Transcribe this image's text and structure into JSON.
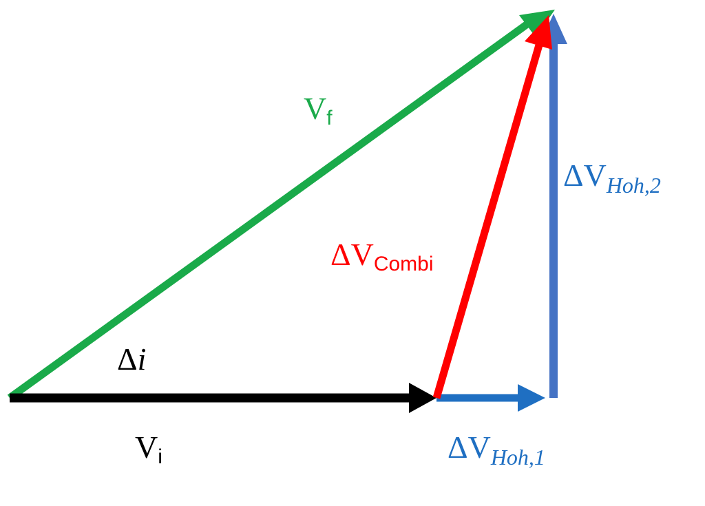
{
  "diagram": {
    "colors": {
      "vi": "#000000",
      "vf": "#1aaa4a",
      "combi": "#ff0000",
      "hoh1": "#1f6fc2",
      "hoh2": "#4472c4",
      "angle_text": "#000000"
    },
    "labels": {
      "vf": {
        "main": "V",
        "sub": "f"
      },
      "vi": {
        "main": "V",
        "sub": "i"
      },
      "combi": {
        "main": "ΔV",
        "sub": "Combi"
      },
      "hoh1": {
        "main": "ΔV",
        "sub": "Hoh,1"
      },
      "hoh2": {
        "main": "ΔV",
        "sub": "Hoh,2"
      },
      "angle": {
        "delta": "Δ",
        "var": "i"
      }
    }
  }
}
